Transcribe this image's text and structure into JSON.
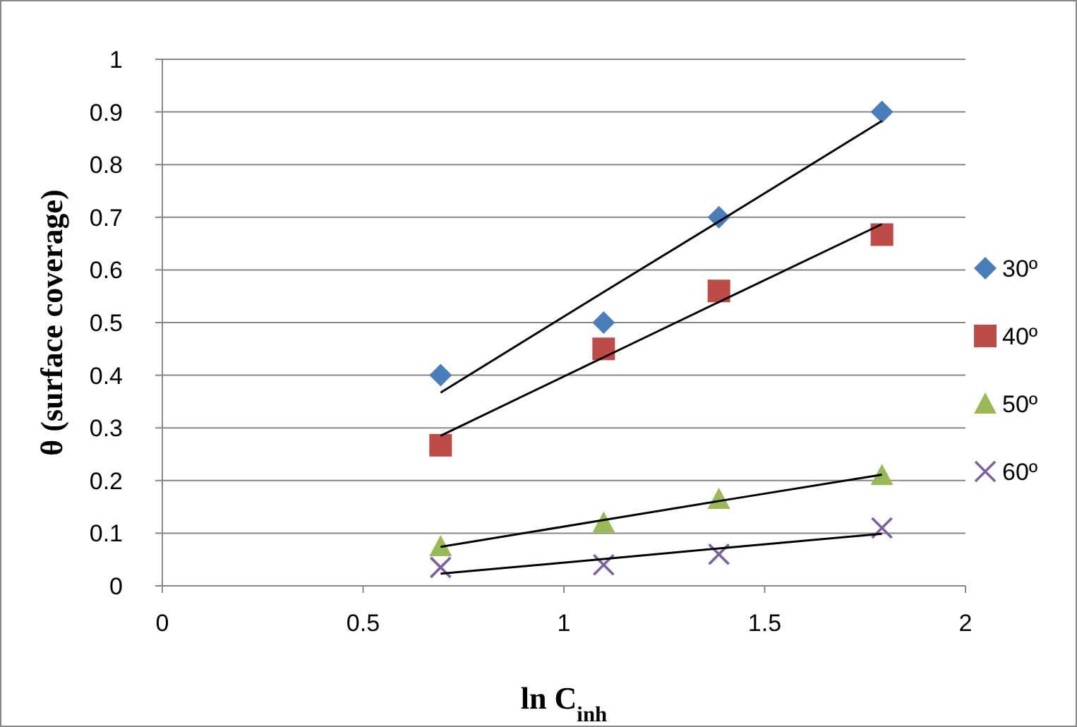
{
  "chart_data": {
    "type": "scatter",
    "xlabel": "ln C$_{inh}$",
    "ylabel": "θ (surface coverage)",
    "xlim": [
      0,
      2
    ],
    "xticks": [
      0,
      0.5,
      1,
      1.5,
      2
    ],
    "ylim": [
      0,
      1
    ],
    "yticks": [
      0,
      0.1,
      0.2,
      0.3,
      0.4,
      0.5,
      0.6,
      0.7,
      0.8,
      0.9,
      1
    ],
    "grid": "y",
    "legend": "right",
    "x": [
      0.693,
      1.099,
      1.386,
      1.792
    ],
    "series": [
      {
        "name": "30º",
        "color": "#4a7ebb",
        "marker": "diamond",
        "values": [
          0.4,
          0.5,
          0.7,
          0.9
        ]
      },
      {
        "name": "40º",
        "color": "#be4b48",
        "marker": "square",
        "values": [
          0.267,
          0.45,
          0.56,
          0.667
        ]
      },
      {
        "name": "50º",
        "color": "#98b954",
        "marker": "triangle",
        "values": [
          0.075,
          0.12,
          0.165,
          0.21
        ]
      },
      {
        "name": "60º",
        "color": "#7d60a0",
        "marker": "cross",
        "values": [
          0.035,
          0.04,
          0.06,
          0.11
        ]
      },
      {
        "type": "line",
        "color": "#000000",
        "marker": "none",
        "values": [
          0.367,
          0.558,
          0.692,
          0.883
        ]
      },
      {
        "type": "line",
        "color": "#000000",
        "marker": "none",
        "values": [
          0.285,
          0.434,
          0.539,
          0.687
        ]
      },
      {
        "type": "line",
        "color": "#000000",
        "marker": "none",
        "values": [
          0.074,
          0.125,
          0.161,
          0.211
        ]
      },
      {
        "type": "line",
        "color": "#000000",
        "marker": "none",
        "values": [
          0.023,
          0.051,
          0.071,
          0.099
        ]
      }
    ]
  }
}
